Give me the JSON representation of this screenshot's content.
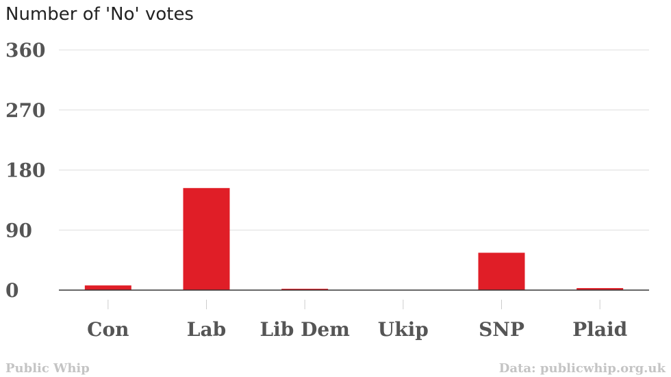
{
  "chart_data": {
    "type": "bar",
    "title": "Number of 'No' votes",
    "categories": [
      "Con",
      "Lab",
      "Lib Dem",
      "Ukip",
      "SNP",
      "Plaid"
    ],
    "values": [
      7,
      153,
      2,
      0,
      56,
      3
    ],
    "yticks": [
      0,
      90,
      180,
      270,
      360
    ],
    "ylim": [
      0,
      360
    ],
    "grid": true,
    "bar_color": "#e01e27"
  },
  "footer": {
    "source_left": "Public Whip",
    "source_right": "Data: publicwhip.org.uk"
  }
}
